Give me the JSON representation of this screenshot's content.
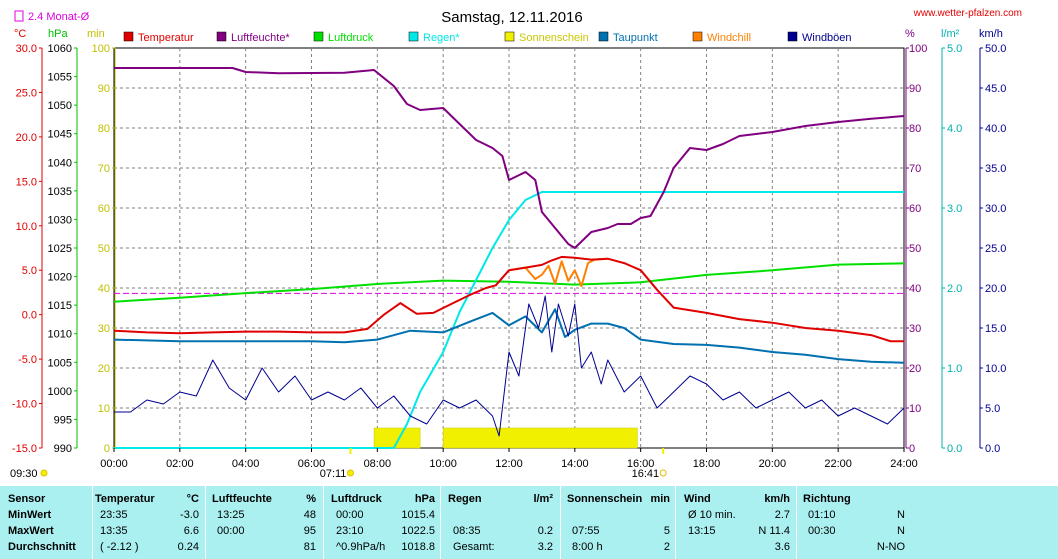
{
  "header": {
    "title": "Samstag, 12.11.2016",
    "site": "www.wetter-pfalzen.com",
    "monat_legend": "2.4 Monat-Ø",
    "unit_labels": {
      "celsius": "°C",
      "hpa": "hPa",
      "min": "min",
      "percent": "%",
      "rain": "l/m²",
      "wind": "km/h"
    }
  },
  "colors": {
    "temperatur": "#e00000",
    "luftfeuchte": "#800080",
    "luftdruck": "#00e000",
    "regen": "#00e8e8",
    "sonnenschein": "#f0f000",
    "taupunkt": "#0070b0",
    "windchill": "#ff8000",
    "windboen": "#000090",
    "monat": "#e000e0"
  },
  "chart_data": {
    "type": "line",
    "title": "Samstag, 12.11.2016",
    "x_ticks": [
      "00:00",
      "02:00",
      "04:00",
      "06:00",
      "08:00",
      "10:00",
      "12:00",
      "14:00",
      "16:00",
      "18:00",
      "20:00",
      "22:00",
      "24:00"
    ],
    "xlim_hours": [
      0,
      24
    ],
    "grid": true,
    "legend_placement": "top",
    "axes": {
      "temperature": {
        "label": "°C",
        "range": [
          -15,
          30
        ],
        "ticks": [
          "30.0",
          "25.0",
          "20.0",
          "15.0",
          "10.0",
          "5.0",
          "0.0",
          "-5.0",
          "-10.0",
          "-15.0"
        ]
      },
      "pressure": {
        "label": "hPa",
        "range": [
          990,
          1060
        ],
        "ticks": [
          "1060",
          "1055",
          "1050",
          "1045",
          "1040",
          "1035",
          "1030",
          "1025",
          "1020",
          "1015",
          "1010",
          "1005",
          "1000",
          "995",
          "990"
        ]
      },
      "sunshine": {
        "label": "min",
        "range": [
          0,
          100
        ],
        "ticks": [
          "100",
          "90",
          "80",
          "70",
          "60",
          "50",
          "40",
          "30",
          "20",
          "10",
          "0"
        ]
      },
      "humidity": {
        "label": "%",
        "range": [
          0,
          100
        ],
        "ticks": [
          "100",
          "90",
          "80",
          "70",
          "60",
          "50",
          "40",
          "30",
          "20",
          "10",
          "0"
        ]
      },
      "rain": {
        "label": "l/m²",
        "range": [
          0,
          5
        ],
        "ticks": [
          "5.0",
          "4.0",
          "3.0",
          "2.0",
          "1.0",
          "0.0"
        ]
      },
      "wind": {
        "label": "km/h",
        "range": [
          0,
          50
        ],
        "ticks": [
          "50.0",
          "45.0",
          "40.0",
          "35.0",
          "30.0",
          "25.0",
          "20.0",
          "15.0",
          "10.0",
          "5.0",
          "0.0"
        ]
      }
    },
    "series": [
      {
        "name": "Temperatur",
        "axis": "temperature",
        "points": [
          [
            0,
            -1.8
          ],
          [
            1,
            -2.0
          ],
          [
            2,
            -2.1
          ],
          [
            3,
            -2.0
          ],
          [
            4,
            -1.9
          ],
          [
            5,
            -1.9
          ],
          [
            6,
            -2.0
          ],
          [
            7,
            -2.0
          ],
          [
            7.7,
            -1.6
          ],
          [
            8.2,
            0.0
          ],
          [
            8.7,
            1.3
          ],
          [
            9.2,
            0.1
          ],
          [
            9.7,
            0.2
          ],
          [
            10.3,
            1.3
          ],
          [
            10.8,
            2.2
          ],
          [
            11.3,
            3.0
          ],
          [
            11.6,
            3.3
          ],
          [
            12,
            5.0
          ],
          [
            12.5,
            5.3
          ],
          [
            13,
            5.6
          ],
          [
            13.3,
            6.1
          ],
          [
            13.6,
            6.5
          ],
          [
            14,
            6.4
          ],
          [
            14.5,
            6.2
          ],
          [
            15,
            6.3
          ],
          [
            15.5,
            5.8
          ],
          [
            16,
            5.0
          ],
          [
            16.5,
            2.8
          ],
          [
            17,
            0.8
          ],
          [
            17.5,
            0.5
          ],
          [
            18,
            0.2
          ],
          [
            19,
            -0.5
          ],
          [
            20,
            -0.9
          ],
          [
            21,
            -1.5
          ],
          [
            22,
            -1.8
          ],
          [
            23,
            -2.3
          ],
          [
            23.6,
            -3.0
          ],
          [
            24,
            -3.0
          ]
        ]
      },
      {
        "name": "Luftfeuchte*",
        "axis": "humidity",
        "points": [
          [
            0,
            95
          ],
          [
            1,
            95
          ],
          [
            3,
            95
          ],
          [
            3.6,
            95
          ],
          [
            4,
            94
          ],
          [
            5,
            93.7
          ],
          [
            7,
            93.8
          ],
          [
            7.9,
            94.5
          ],
          [
            8.5,
            90.5
          ],
          [
            8.9,
            86
          ],
          [
            9.3,
            84.5
          ],
          [
            10,
            85
          ],
          [
            10.5,
            81
          ],
          [
            11,
            77
          ],
          [
            11.5,
            75
          ],
          [
            11.8,
            73
          ],
          [
            12,
            67
          ],
          [
            12.5,
            69
          ],
          [
            12.8,
            67
          ],
          [
            13,
            59
          ],
          [
            13.5,
            54
          ],
          [
            13.8,
            51
          ],
          [
            14,
            50
          ],
          [
            14.5,
            54
          ],
          [
            15,
            55
          ],
          [
            15.3,
            56
          ],
          [
            15.7,
            56
          ],
          [
            16,
            57.5
          ],
          [
            16.3,
            58
          ],
          [
            16.7,
            64
          ],
          [
            17,
            70
          ],
          [
            17.5,
            75
          ],
          [
            18,
            74.5
          ],
          [
            18.5,
            76
          ],
          [
            19,
            78
          ],
          [
            20,
            79
          ],
          [
            21,
            80.5
          ],
          [
            22,
            81.5
          ],
          [
            23,
            82.3
          ],
          [
            24,
            83
          ]
        ]
      },
      {
        "name": "Luftdruck",
        "axis": "pressure",
        "points": [
          [
            0,
            1015.6
          ],
          [
            2,
            1016.3
          ],
          [
            4,
            1017.1
          ],
          [
            6,
            1017.8
          ],
          [
            8,
            1018.7
          ],
          [
            10,
            1019.3
          ],
          [
            12,
            1019.1
          ],
          [
            14,
            1018.6
          ],
          [
            16,
            1019.0
          ],
          [
            18,
            1020.3
          ],
          [
            20,
            1021.1
          ],
          [
            22,
            1022.1
          ],
          [
            24,
            1022.3
          ]
        ]
      },
      {
        "name": "Regen*",
        "axis": "rain",
        "points": [
          [
            0,
            0
          ],
          [
            8.5,
            0
          ],
          [
            8.9,
            0.3
          ],
          [
            9.3,
            0.7
          ],
          [
            10,
            1.2
          ],
          [
            10.5,
            1.7
          ],
          [
            11,
            2.1
          ],
          [
            11.5,
            2.5
          ],
          [
            12,
            2.85
          ],
          [
            12.5,
            3.1
          ],
          [
            13,
            3.2
          ],
          [
            24,
            3.2
          ]
        ]
      },
      {
        "name": "Taupunkt",
        "axis": "temperature",
        "points": [
          [
            0,
            -2.8
          ],
          [
            2,
            -3.0
          ],
          [
            4,
            -3.0
          ],
          [
            6,
            -3.0
          ],
          [
            7,
            -3.1
          ],
          [
            8,
            -2.8
          ],
          [
            9,
            -1.8
          ],
          [
            10,
            -2.0
          ],
          [
            10.8,
            -0.8
          ],
          [
            11.5,
            0.2
          ],
          [
            12,
            -1.2
          ],
          [
            12.5,
            -0.2
          ],
          [
            13,
            -2.0
          ],
          [
            13.4,
            0.6
          ],
          [
            13.7,
            -2.5
          ],
          [
            14,
            -1.7
          ],
          [
            14.5,
            -1.0
          ],
          [
            15,
            -1.0
          ],
          [
            15.5,
            -1.5
          ],
          [
            16,
            -2.8
          ],
          [
            17,
            -3.3
          ],
          [
            18,
            -3.4
          ],
          [
            19,
            -3.7
          ],
          [
            20,
            -4.2
          ],
          [
            21,
            -4.5
          ],
          [
            22,
            -5.0
          ],
          [
            23,
            -5.3
          ],
          [
            24,
            -5.4
          ]
        ]
      },
      {
        "name": "Windchill",
        "axis": "temperature",
        "points": [
          [
            12,
            5.0
          ],
          [
            12.5,
            5.3
          ],
          [
            12.8,
            4.0
          ],
          [
            13,
            4.5
          ],
          [
            13.2,
            5.5
          ],
          [
            13.4,
            3.5
          ],
          [
            13.6,
            6.0
          ],
          [
            13.8,
            3.8
          ],
          [
            14,
            5.0
          ],
          [
            14.2,
            3.2
          ],
          [
            14.4,
            5.8
          ],
          [
            14.6,
            6.2
          ],
          [
            15,
            6.3
          ]
        ]
      },
      {
        "name": "Windböen",
        "axis": "wind",
        "points": [
          [
            0,
            4.5
          ],
          [
            0.5,
            4.5
          ],
          [
            1,
            6
          ],
          [
            1.5,
            5.5
          ],
          [
            2,
            7
          ],
          [
            2.5,
            6.5
          ],
          [
            3,
            11
          ],
          [
            3.5,
            7.5
          ],
          [
            4,
            6
          ],
          [
            4.5,
            10
          ],
          [
            5,
            7
          ],
          [
            5.5,
            9
          ],
          [
            6,
            6
          ],
          [
            6.5,
            7
          ],
          [
            7,
            6
          ],
          [
            7.5,
            7.5
          ],
          [
            8,
            5
          ],
          [
            8.5,
            6.5
          ],
          [
            9,
            4
          ],
          [
            9.5,
            3
          ],
          [
            10,
            6
          ],
          [
            10.5,
            5
          ],
          [
            11,
            6
          ],
          [
            11.5,
            4
          ],
          [
            11.7,
            1.5
          ],
          [
            12,
            12
          ],
          [
            12.3,
            9
          ],
          [
            12.6,
            18
          ],
          [
            12.9,
            15
          ],
          [
            13.1,
            19
          ],
          [
            13.3,
            12
          ],
          [
            13.5,
            18
          ],
          [
            13.8,
            14
          ],
          [
            14,
            18
          ],
          [
            14.2,
            10
          ],
          [
            14.5,
            12
          ],
          [
            14.8,
            8
          ],
          [
            15,
            11
          ],
          [
            15.5,
            7
          ],
          [
            16,
            9
          ],
          [
            16.5,
            5
          ],
          [
            17,
            7
          ],
          [
            17.5,
            9
          ],
          [
            18,
            8
          ],
          [
            18.5,
            6
          ],
          [
            19,
            7
          ],
          [
            19.5,
            5
          ],
          [
            20,
            6
          ],
          [
            20.5,
            7
          ],
          [
            21,
            5
          ],
          [
            21.5,
            6
          ],
          [
            22,
            4
          ],
          [
            22.5,
            5
          ],
          [
            23,
            4
          ],
          [
            23.5,
            3
          ],
          [
            24,
            5
          ]
        ]
      }
    ],
    "sunshine_bars": {
      "axis": "sunshine",
      "segments": [
        [
          7.9,
          9.3
        ],
        [
          10.0,
          15.9
        ]
      ],
      "value": 5
    },
    "monat_avg_line": {
      "axis": "temperature",
      "value": 2.4
    },
    "sunrise": {
      "time": "07:11",
      "marker": "07:11"
    },
    "sunset": {
      "time": "16:41",
      "marker": "16:41"
    },
    "left_marker": "09:30"
  },
  "legend": [
    {
      "name": "Temperatur",
      "color": "#e00000"
    },
    {
      "name": "Luftfeuchte*",
      "color": "#800080"
    },
    {
      "name": "Luftdruck",
      "color": "#00e000"
    },
    {
      "name": "Regen*",
      "color": "#00e8e8"
    },
    {
      "name": "Sonnenschein",
      "color": "#f0f000"
    },
    {
      "name": "Taupunkt",
      "color": "#0070b0"
    },
    {
      "name": "Windchill",
      "color": "#ff8000"
    },
    {
      "name": "Windböen",
      "color": "#000090"
    }
  ],
  "stats": {
    "sensor": {
      "h": "Sensor",
      "rows": [
        "MinWert",
        "MaxWert",
        "Durchschnitt"
      ]
    },
    "temperatur": {
      "h": "Temperatur",
      "u": "°C",
      "t": [
        "23:35",
        "13:35",
        "( -2.12 )"
      ],
      "v": [
        "-3.0",
        "6.6",
        "0.24"
      ]
    },
    "luftfeuchte": {
      "h": "Luftfeuchte",
      "u": "%",
      "t": [
        "13:25",
        "00:00",
        ""
      ],
      "v": [
        "48",
        "95",
        "81"
      ]
    },
    "luftdruck": {
      "h": "Luftdruck",
      "u": "hPa",
      "t": [
        "00:00",
        "23:10",
        "^0.9hPa/h"
      ],
      "v": [
        "1015.4",
        "1022.5",
        "1018.8"
      ]
    },
    "regen": {
      "h": "Regen",
      "u": "l/m²",
      "t": [
        "",
        "08:35",
        "Gesamt:"
      ],
      "v": [
        "",
        "0.2",
        "3.2"
      ]
    },
    "sonne": {
      "h": "Sonnenschein",
      "u": "min",
      "t": [
        "",
        "07:55",
        "8:00 h"
      ],
      "v": [
        "",
        "5",
        "2"
      ]
    },
    "wind": {
      "h": "Wind",
      "u": "km/h",
      "t": [
        "Ø 10 min.",
        "13:15",
        ""
      ],
      "v": [
        "2.7",
        "N 11.4",
        "3.6"
      ]
    },
    "richtung": {
      "h": "Richtung",
      "t": [
        "01:10",
        "00:30",
        ""
      ],
      "v": [
        "N",
        "N",
        "N-NO"
      ]
    }
  }
}
